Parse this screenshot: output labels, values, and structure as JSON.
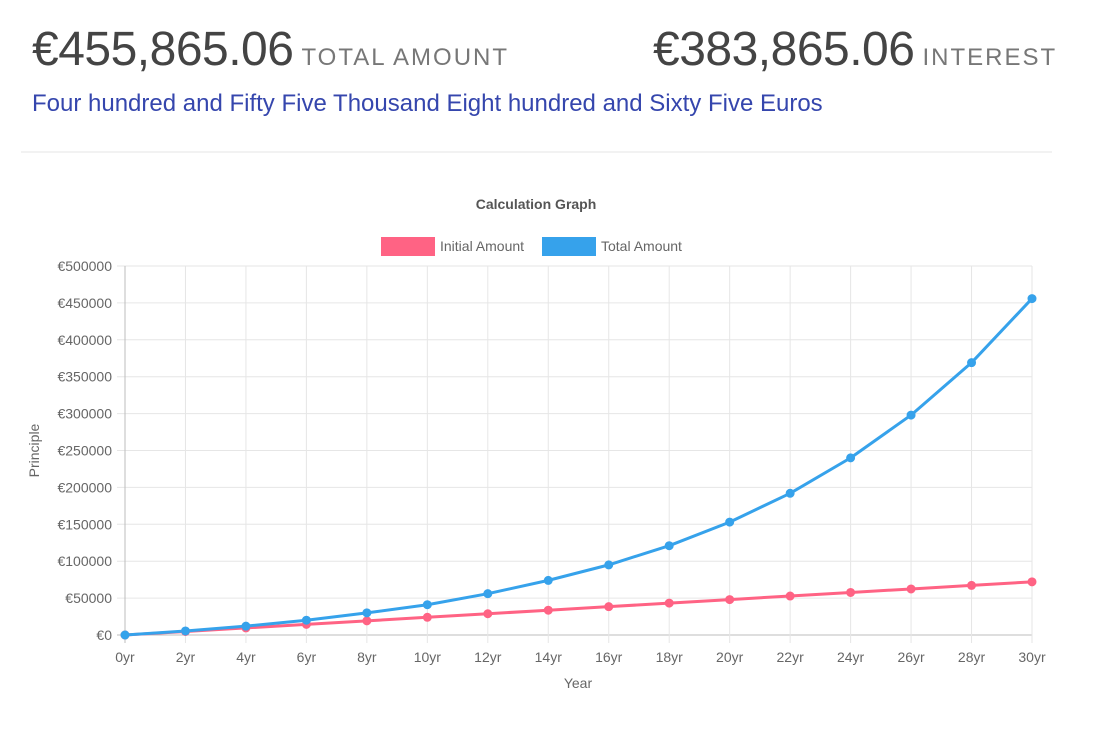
{
  "summary": {
    "total_value": "€455,865.06",
    "total_label": "TOTAL AMOUNT",
    "interest_value": "€383,865.06",
    "interest_label": "INTEREST",
    "amount_in_words": "Four hundred and Fifty Five Thousand Eight hundred and Sixty Five Euros"
  },
  "chart_data": {
    "type": "line",
    "title": "Calculation Graph",
    "xlabel": "Year",
    "ylabel": "Principle",
    "legend_position": "top",
    "grid": true,
    "ylim": [
      0,
      500000
    ],
    "y_ticks": [
      "€0",
      "€50000",
      "€100000",
      "€150000",
      "€200000",
      "€250000",
      "€300000",
      "€350000",
      "€400000",
      "€450000",
      "€500000"
    ],
    "x": [
      "0yr",
      "2yr",
      "4yr",
      "6yr",
      "8yr",
      "10yr",
      "12yr",
      "14yr",
      "16yr",
      "18yr",
      "20yr",
      "22yr",
      "24yr",
      "26yr",
      "28yr",
      "30yr"
    ],
    "series": [
      {
        "name": "Initial Amount",
        "color": "#ff6384",
        "values": [
          0,
          4800,
          9600,
          14400,
          19200,
          24000,
          28800,
          33600,
          38400,
          43200,
          48000,
          52800,
          57600,
          62400,
          67200,
          72000
        ]
      },
      {
        "name": "Total Amount",
        "color": "#36a2eb",
        "values": [
          0,
          5500,
          12000,
          20000,
          30000,
          41000,
          56000,
          74000,
          95000,
          121000,
          153000,
          192000,
          240000,
          298000,
          369000,
          455865
        ]
      }
    ]
  }
}
